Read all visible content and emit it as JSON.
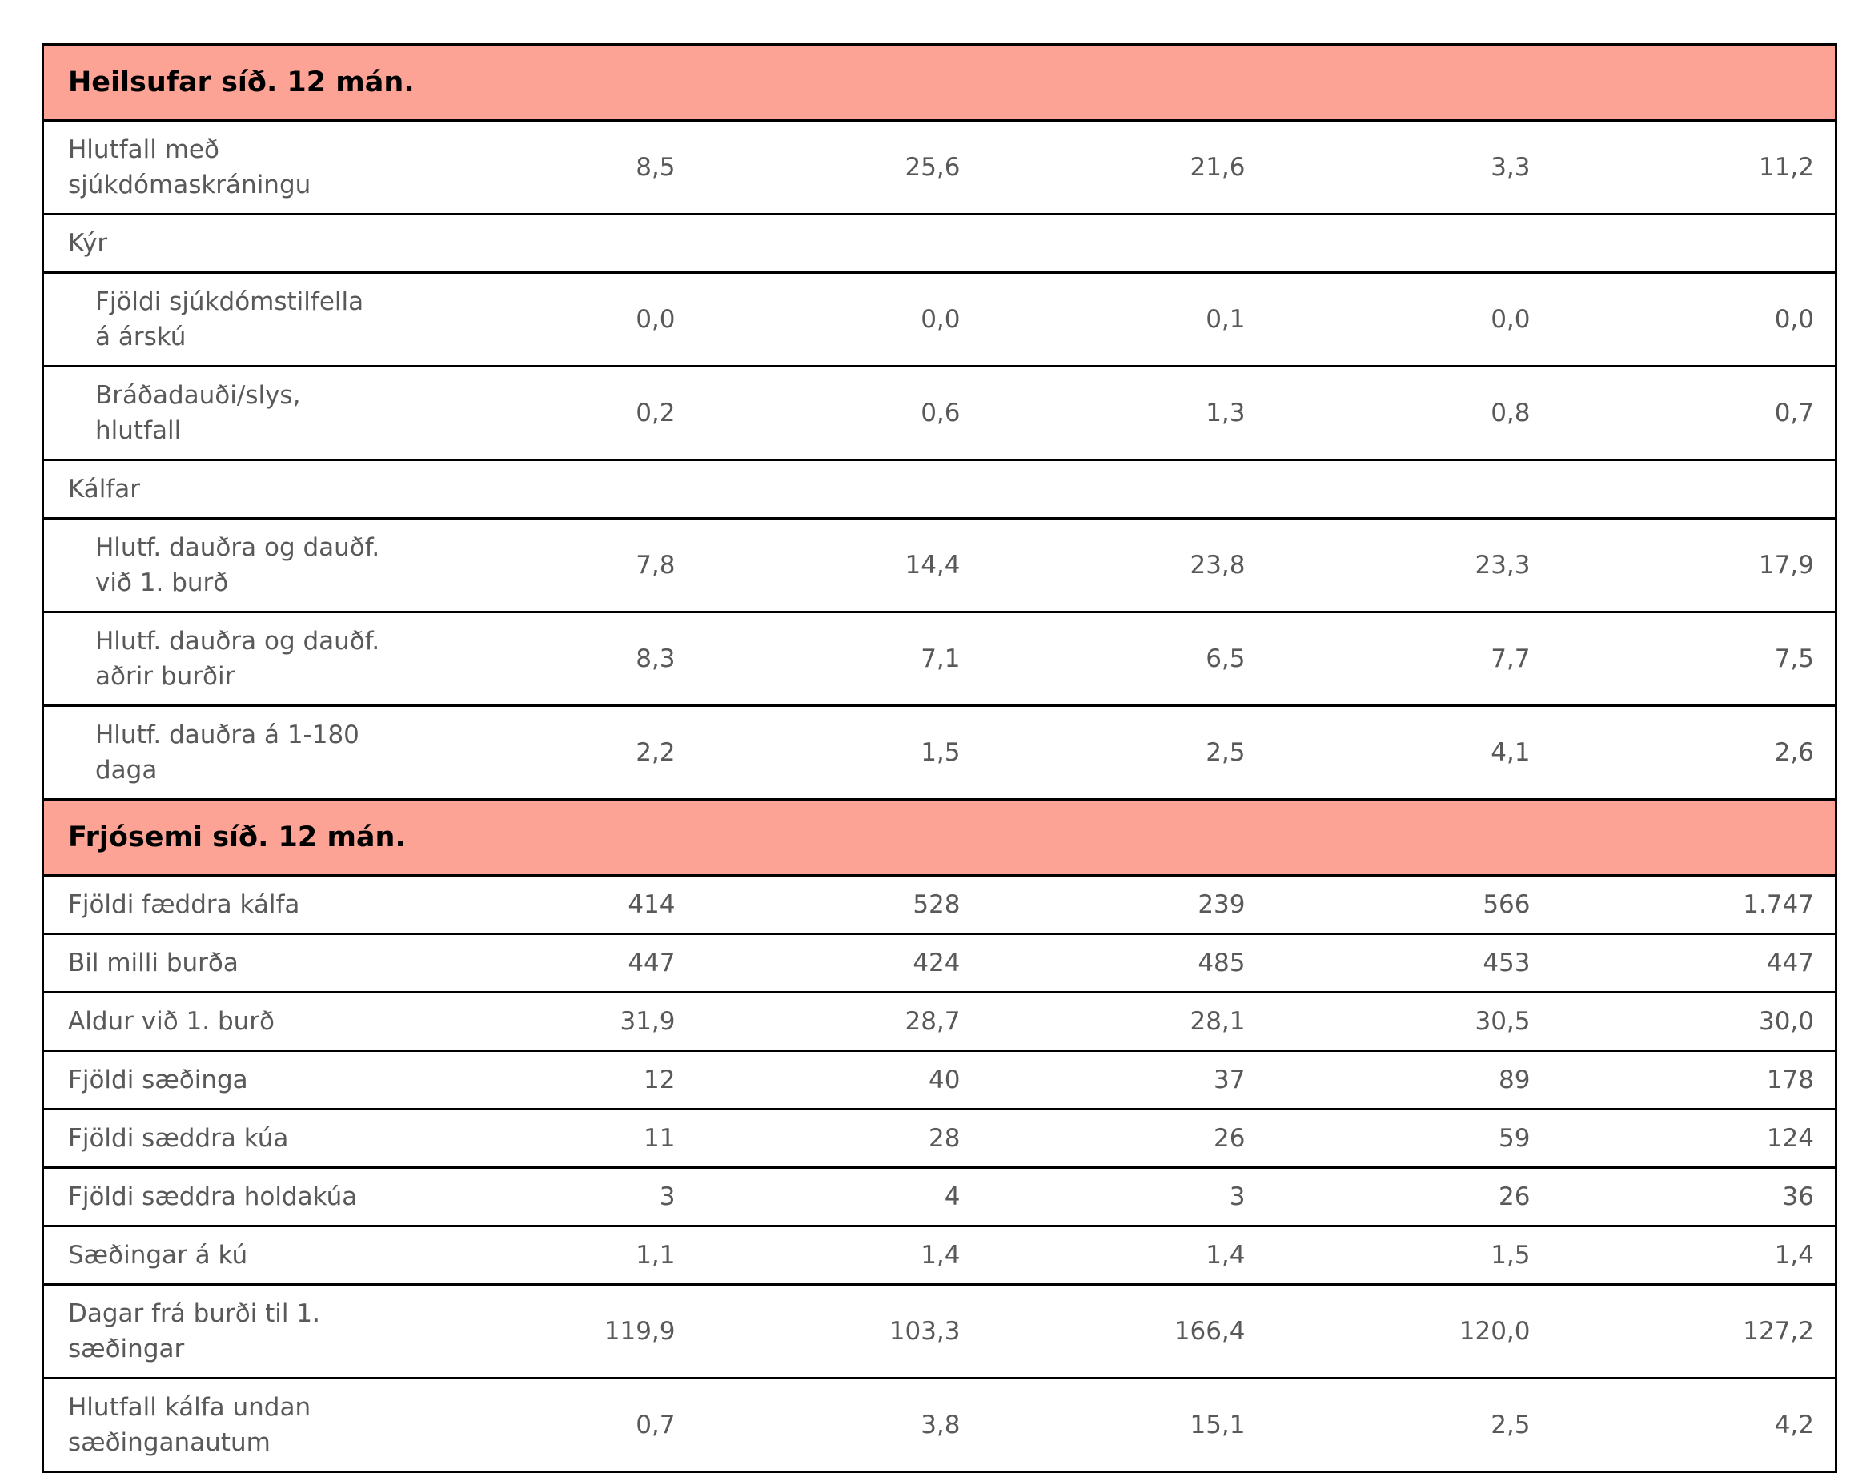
{
  "page": {
    "background_color": "#ffffff"
  },
  "table": {
    "accent_color": "#FCA396",
    "border_color": "#000000",
    "body_text_color": "#595959",
    "header_text_color": "#000000",
    "value_column_count": 5,
    "sections": [
      {
        "title": "Heilsufar síð. 12 mán.",
        "rows": [
          {
            "label": "Hlutfall með\nsjúkdómaskráningu",
            "indent": false,
            "group": false,
            "values": [
              "8,5",
              "25,6",
              "21,6",
              "3,3",
              "11,2"
            ]
          },
          {
            "label": "Kýr",
            "indent": false,
            "group": true,
            "values": []
          },
          {
            "label": "Fjöldi sjúkdómstilfella\ná árskú",
            "indent": true,
            "group": false,
            "values": [
              "0,0",
              "0,0",
              "0,1",
              "0,0",
              "0,0"
            ]
          },
          {
            "label": "Bráðadauði/slys,\nhlutfall",
            "indent": true,
            "group": false,
            "values": [
              "0,2",
              "0,6",
              "1,3",
              "0,8",
              "0,7"
            ]
          },
          {
            "label": "Kálfar",
            "indent": false,
            "group": true,
            "values": []
          },
          {
            "label": "Hlutf. dauðra og dauðf.\nvið 1. burð",
            "indent": true,
            "group": false,
            "values": [
              "7,8",
              "14,4",
              "23,8",
              "23,3",
              "17,9"
            ]
          },
          {
            "label": "Hlutf. dauðra og dauðf.\naðrir burðir",
            "indent": true,
            "group": false,
            "values": [
              "8,3",
              "7,1",
              "6,5",
              "7,7",
              "7,5"
            ]
          },
          {
            "label": "Hlutf. dauðra á 1-180\ndaga",
            "indent": true,
            "group": false,
            "values": [
              "2,2",
              "1,5",
              "2,5",
              "4,1",
              "2,6"
            ]
          }
        ]
      },
      {
        "title": "Frjósemi síð. 12 mán.",
        "rows": [
          {
            "label": "Fjöldi fæddra kálfa",
            "indent": false,
            "group": false,
            "values": [
              "414",
              "528",
              "239",
              "566",
              "1.747"
            ]
          },
          {
            "label": "Bil milli burða",
            "indent": false,
            "group": false,
            "values": [
              "447",
              "424",
              "485",
              "453",
              "447"
            ]
          },
          {
            "label": "Aldur við 1. burð",
            "indent": false,
            "group": false,
            "values": [
              "31,9",
              "28,7",
              "28,1",
              "30,5",
              "30,0"
            ]
          },
          {
            "label": "Fjöldi sæðinga",
            "indent": false,
            "group": false,
            "values": [
              "12",
              "40",
              "37",
              "89",
              "178"
            ]
          },
          {
            "label": "Fjöldi sæddra kúa",
            "indent": false,
            "group": false,
            "values": [
              "11",
              "28",
              "26",
              "59",
              "124"
            ]
          },
          {
            "label": "Fjöldi sæddra holdakúa",
            "indent": false,
            "group": false,
            "values": [
              "3",
              "4",
              "3",
              "26",
              "36"
            ]
          },
          {
            "label": "Sæðingar á kú",
            "indent": false,
            "group": false,
            "values": [
              "1,1",
              "1,4",
              "1,4",
              "1,5",
              "1,4"
            ]
          },
          {
            "label": "Dagar frá burði til 1.\nsæðingar",
            "indent": false,
            "group": false,
            "values": [
              "119,9",
              "103,3",
              "166,4",
              "120,0",
              "127,2"
            ]
          },
          {
            "label": "Hlutfall kálfa undan\nsæðinganautum",
            "indent": false,
            "group": false,
            "values": [
              "0,7",
              "3,8",
              "15,1",
              "2,5",
              "4,2"
            ]
          }
        ]
      }
    ]
  }
}
